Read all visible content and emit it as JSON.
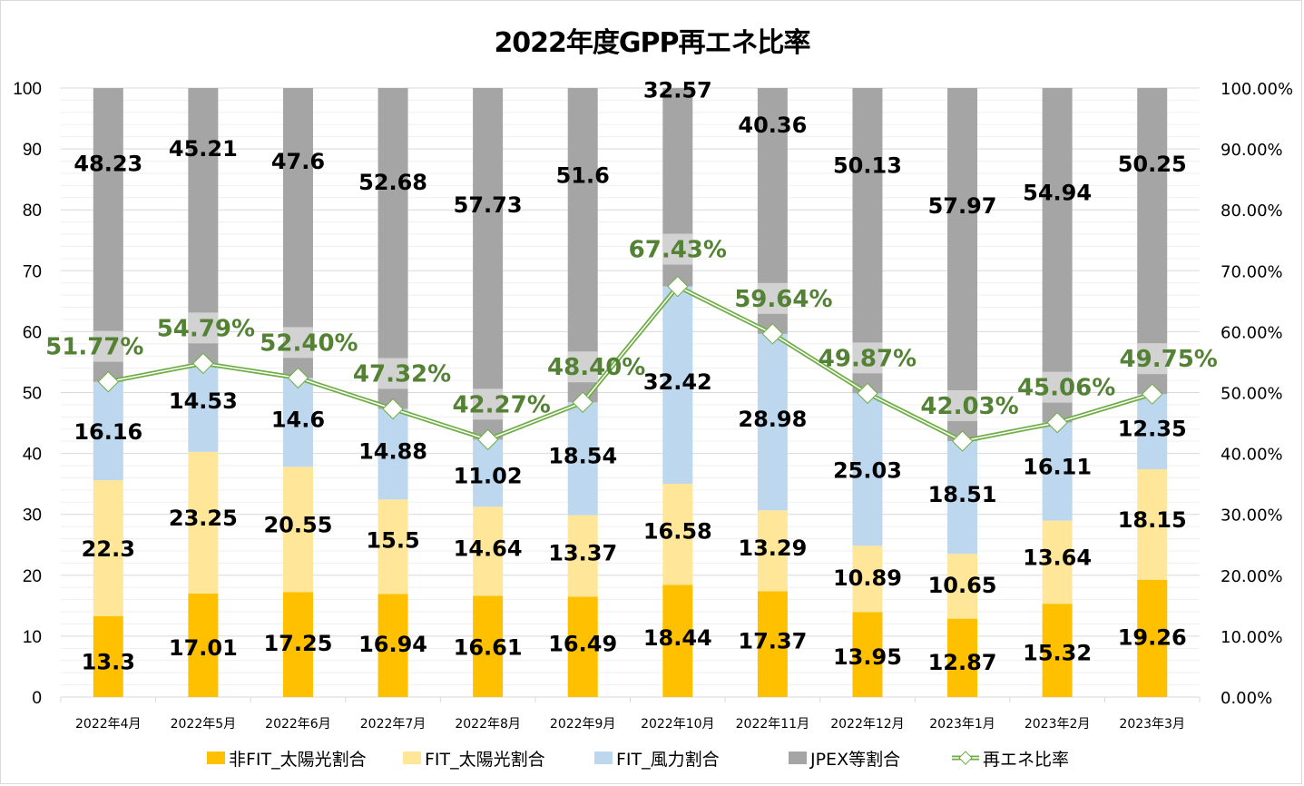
{
  "chart_data": {
    "type": "bar",
    "subtype": "stacked-bar-with-line",
    "title": "2022年度GPP再エネ比率",
    "categories": [
      "2022年4月",
      "2022年5月",
      "2022年6月",
      "2022年7月",
      "2022年8月",
      "2022年9月",
      "2022年10月",
      "2022年11月",
      "2022年12月",
      "2023年1月",
      "2023年2月",
      "2023年3月"
    ],
    "series": [
      {
        "name": "非FIT_太陽光割合",
        "color": "#FFC000",
        "axis": "left",
        "values": [
          13.3,
          17.01,
          17.25,
          16.94,
          16.61,
          16.49,
          18.44,
          17.37,
          13.95,
          12.87,
          15.32,
          19.26
        ]
      },
      {
        "name": "FIT_太陽光割合",
        "color": "#FFE699",
        "axis": "left",
        "values": [
          22.3,
          23.25,
          20.55,
          15.5,
          14.64,
          13.37,
          16.58,
          13.29,
          10.89,
          10.65,
          13.64,
          18.15
        ]
      },
      {
        "name": "FIT_風力割合",
        "color": "#BDD7EE",
        "axis": "left",
        "values": [
          16.16,
          14.53,
          14.6,
          14.88,
          11.02,
          18.54,
          32.42,
          28.98,
          25.03,
          18.51,
          16.11,
          12.35
        ]
      },
      {
        "name": "JPEX等割合",
        "color": "#A5A5A5",
        "axis": "left",
        "values": [
          48.23,
          45.21,
          47.6,
          52.68,
          57.73,
          51.6,
          32.57,
          40.36,
          50.13,
          57.97,
          54.94,
          50.25
        ]
      }
    ],
    "line": {
      "name": "再エネ比率",
      "color": "#70AD47",
      "label_color": "#548235",
      "axis": "right",
      "values": [
        51.77,
        54.79,
        52.4,
        47.32,
        42.27,
        48.4,
        67.43,
        59.64,
        49.87,
        42.03,
        45.06,
        49.75
      ],
      "labels": [
        "51.77%",
        "54.79%",
        "52.40%",
        "47.32%",
        "42.27%",
        "48.40%",
        "67.43%",
        "59.64%",
        "49.87%",
        "42.03%",
        "45.06%",
        "49.75%"
      ]
    },
    "y_left": {
      "ylim": [
        0,
        100
      ],
      "ticks": [
        "0",
        "10",
        "20",
        "30",
        "40",
        "50",
        "60",
        "70",
        "80",
        "90",
        "100"
      ]
    },
    "y_right": {
      "ylim": [
        0,
        1
      ],
      "ticks": [
        "0.00%",
        "10.00%",
        "20.00%",
        "30.00%",
        "40.00%",
        "50.00%",
        "60.00%",
        "70.00%",
        "80.00%",
        "90.00%",
        "100.00%"
      ]
    },
    "xlabel": "",
    "ylabel": "",
    "grid": true,
    "legend": {
      "position": "bottom"
    }
  }
}
